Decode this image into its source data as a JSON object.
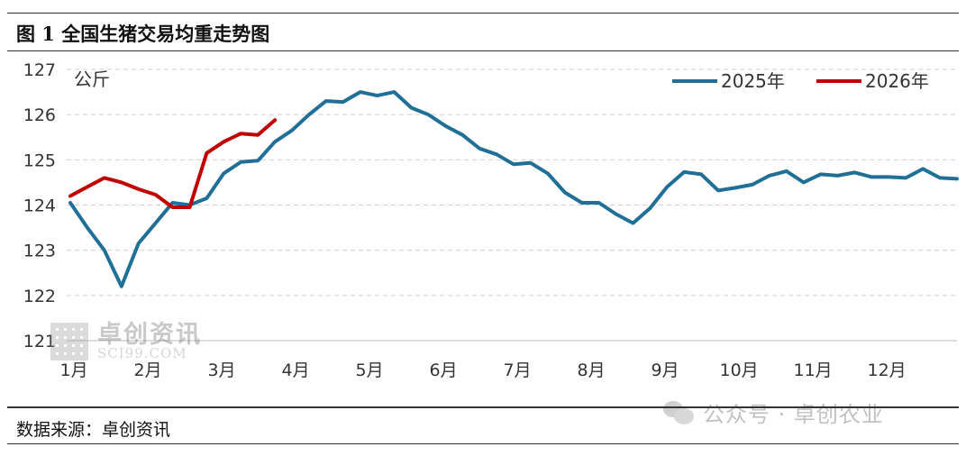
{
  "figure_title": "图 1  全国生猪交易均重走势图",
  "source": "数据来源：卓创资讯",
  "watermarks": {
    "logo_cn": "卓创资讯",
    "logo_en": "SCI99.COM",
    "account": "公众号 · 卓创农业"
  },
  "chart_data": {
    "type": "line",
    "title": "",
    "ylabel": "公斤",
    "xlabel": "",
    "ylim": [
      121,
      127
    ],
    "yticks": [
      121,
      122,
      123,
      124,
      125,
      126,
      127
    ],
    "categories": [
      "1月",
      "2月",
      "3月",
      "4月",
      "5月",
      "6月",
      "7月",
      "8月",
      "9月",
      "10月",
      "11月",
      "12月"
    ],
    "x_unit": "week",
    "xlim": [
      0,
      52
    ],
    "grid": true,
    "legend_position": "top-right",
    "series": [
      {
        "name": "2025年",
        "color": "#1f6f96",
        "x": [
          0,
          1,
          2,
          3,
          4,
          5,
          6,
          7,
          8,
          9,
          10,
          11,
          12,
          13,
          14,
          15,
          16,
          17,
          18,
          19,
          20,
          21,
          22,
          23,
          24,
          25,
          26,
          27,
          28,
          29,
          30,
          31,
          32,
          33,
          34,
          35,
          36,
          37,
          38,
          39,
          40,
          41,
          42,
          43,
          44,
          45,
          46,
          47,
          48,
          49,
          50,
          51,
          52
        ],
        "values": [
          124.05,
          123.5,
          123.0,
          122.2,
          123.15,
          123.6,
          124.05,
          124.0,
          124.15,
          124.7,
          124.95,
          124.98,
          125.4,
          125.65,
          126.0,
          126.3,
          126.28,
          126.5,
          126.42,
          126.5,
          126.15,
          126.0,
          125.75,
          125.55,
          125.25,
          125.12,
          124.9,
          124.93,
          124.7,
          124.28,
          124.05,
          124.05,
          123.8,
          123.6,
          123.93,
          124.4,
          124.73,
          124.68,
          124.32,
          124.38,
          124.45,
          124.65,
          124.75,
          124.5,
          124.68,
          124.65,
          124.72,
          124.62,
          124.62,
          124.6,
          124.8,
          124.6,
          124.58
        ]
      },
      {
        "name": "2026年",
        "color": "#c00000",
        "x": [
          0,
          1,
          2,
          3,
          4,
          5,
          6,
          7,
          8,
          9,
          10,
          11,
          12
        ],
        "values": [
          124.2,
          124.4,
          124.6,
          124.5,
          124.35,
          124.23,
          123.95,
          123.95,
          125.15,
          125.4,
          125.58,
          125.55,
          125.88
        ]
      }
    ]
  }
}
